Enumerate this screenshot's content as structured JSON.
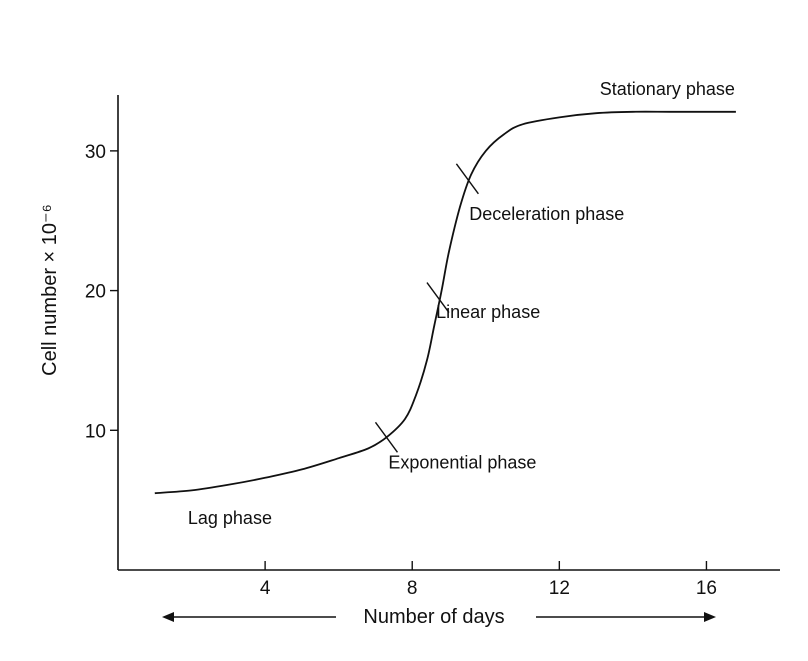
{
  "chart_data": {
    "type": "line",
    "xlabel": "Number of days",
    "ylabel": "Cell number × 10⁻⁶",
    "xlim": [
      0,
      18
    ],
    "ylim": [
      0,
      34
    ],
    "xticks": [
      4,
      8,
      12,
      16
    ],
    "yticks": [
      10,
      20,
      30
    ],
    "grid": false,
    "series": [
      {
        "x": [
          1.0,
          2.0,
          3.0,
          4.0,
          5.0,
          6.0,
          6.8,
          7.3,
          7.8,
          8.1,
          8.4,
          8.6,
          8.8,
          9.0,
          9.3,
          9.6,
          10.0,
          10.5,
          11.0,
          12.0,
          13.0,
          14.0,
          15.0,
          16.0,
          16.8
        ],
        "y": [
          5.5,
          5.7,
          6.1,
          6.6,
          7.2,
          8.0,
          8.7,
          9.5,
          10.8,
          12.5,
          15.0,
          17.5,
          20.0,
          22.8,
          26.0,
          28.3,
          30.0,
          31.2,
          31.9,
          32.4,
          32.7,
          32.8,
          32.8,
          32.8,
          32.8
        ]
      }
    ],
    "annotations": [
      {
        "text": "Lag phase",
        "x": 1.9,
        "y": 3.3
      },
      {
        "text": "Exponential phase",
        "x": 7.3,
        "y": 9.5,
        "label_x": 7.0,
        "label_y": 8.0
      },
      {
        "text": "Linear phase",
        "x": 8.7,
        "y": 19.5,
        "label_x": 8.3,
        "label_y": 18.8
      },
      {
        "text": "Deceleration phase",
        "x": 9.5,
        "y": 28.0,
        "label_x": 9.2,
        "label_y": 25.8
      },
      {
        "text": "Stationary phase",
        "x": 13.1,
        "y": 34.0
      }
    ]
  }
}
